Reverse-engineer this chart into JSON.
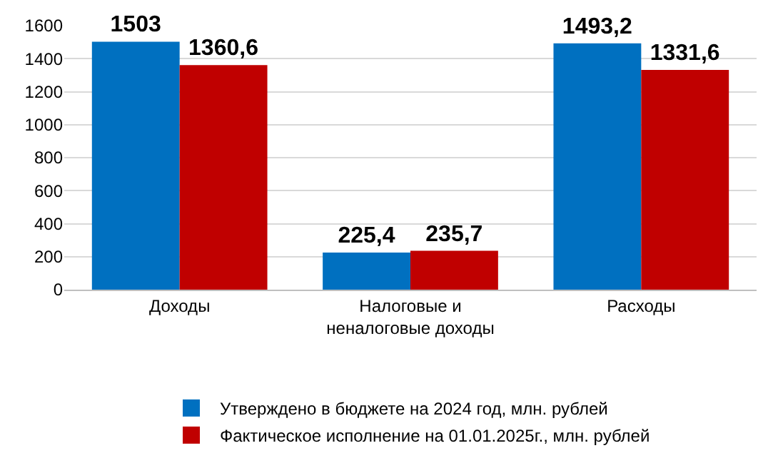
{
  "chart_data": {
    "type": "bar",
    "categories": [
      "Доходы",
      "Налоговые и неналоговые доходы",
      "Расходы"
    ],
    "series": [
      {
        "name": "Утверждено в бюджете на 2024 год, млн. рублей",
        "color": "#0070c0",
        "values": [
          1503,
          225.4,
          1493.2
        ],
        "value_labels": [
          "1503",
          "225,4",
          "1493,2"
        ]
      },
      {
        "name": "Фактическое исполнение на 01.01.2025г., млн. рублей",
        "color": "#c00000",
        "values": [
          1360.6,
          235.7,
          1331.6
        ],
        "value_labels": [
          "1360,6",
          "235,7",
          "1331,6"
        ]
      }
    ],
    "ylim": [
      0,
      1600
    ],
    "yticks": [
      0,
      200,
      400,
      600,
      800,
      1000,
      1200,
      1400,
      1600
    ],
    "grid": "y",
    "legend": "bottom"
  }
}
